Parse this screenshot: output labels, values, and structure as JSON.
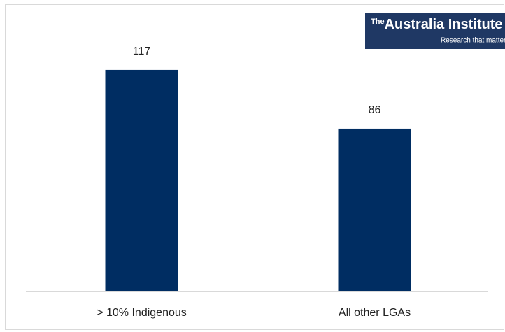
{
  "chart_data": {
    "type": "bar",
    "categories": [
      "> 10% Indigenous",
      "All other LGAs"
    ],
    "values": [
      117,
      86
    ],
    "color": "#002d62",
    "ylim": [
      0,
      150
    ],
    "logo": {
      "prefix": "The",
      "name": "Australia Institute",
      "tagline": "Research that matters"
    }
  }
}
